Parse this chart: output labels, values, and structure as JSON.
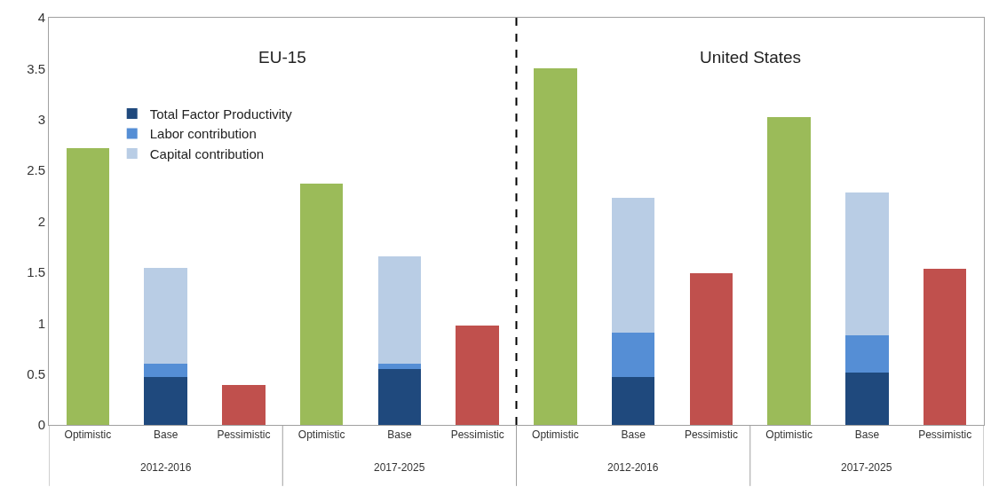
{
  "chart_data": {
    "type": "bar",
    "stacked": true,
    "categories": [
      "Optimistic",
      "Base",
      "Pessimistic",
      "Optimistic",
      "Base",
      "Pessimistic",
      "Optimistic",
      "Base",
      "Pessimistic",
      "Optimistic",
      "Base",
      "Pessimistic"
    ],
    "series": [
      {
        "color": "#9bbb59",
        "values": [
          2.72,
          null,
          null,
          2.37,
          null,
          null,
          3.5,
          null,
          null,
          3.02,
          null,
          null
        ]
      },
      {
        "name": "Total Factor Productivity",
        "color": "#1f497d",
        "values": [
          null,
          0.47,
          null,
          null,
          0.55,
          null,
          null,
          0.47,
          null,
          null,
          0.51,
          null
        ]
      },
      {
        "name": "Labor contribution",
        "color": "#558ed5",
        "values": [
          null,
          0.13,
          null,
          null,
          0.05,
          null,
          null,
          0.44,
          null,
          null,
          0.37,
          null
        ]
      },
      {
        "name": "Capital contribution",
        "color": "#b9cde5",
        "values": [
          null,
          0.94,
          null,
          null,
          1.06,
          null,
          null,
          1.32,
          null,
          null,
          1.4,
          null
        ]
      },
      {
        "color": "#c0504d",
        "values": [
          null,
          null,
          0.39,
          null,
          null,
          0.98,
          null,
          null,
          1.49,
          null,
          null,
          1.53
        ]
      }
    ],
    "ylim": [
      0,
      4
    ],
    "yticks": [
      0,
      0.5,
      1,
      1.5,
      2,
      2.5,
      3,
      3.5,
      4
    ],
    "annotations": [
      "EU-15",
      "United States",
      "2012-2016",
      "2017-2025",
      "2012-2016",
      "2017-2025"
    ],
    "legend": "top left"
  }
}
